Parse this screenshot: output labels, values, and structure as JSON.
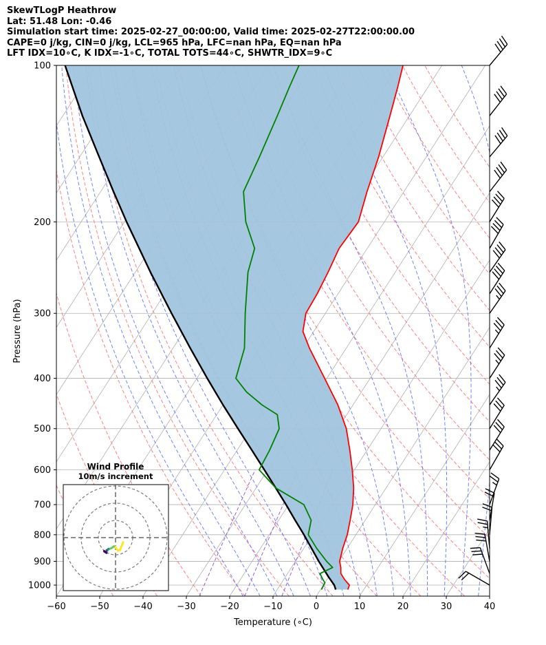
{
  "header": {
    "lines": [
      "SkewTLogP Heathrow",
      "Lat: 51.48   Lon: -0.46",
      "Simulation start time: 2025-02-27_00:00:00, Valid time: 2025-02-27T22:00:00.00",
      "CAPE=0 j/kg, CIN=0 j/kg, LCL=965 hPa, LFC=nan hPa, EQ=nan hPa",
      "LFT IDX=10∘C, K IDX=-1∘C, TOTAL TOTS=44∘C, SHWTR_IDX=9∘C"
    ]
  },
  "chart_data": {
    "type": "line",
    "xlabel": "Temperature (∘C)",
    "ylabel": "Pressure (hPa)",
    "xlim": [
      -60,
      40
    ],
    "ylim": [
      1050,
      100
    ],
    "yscale": "log",
    "xticks": [
      -60,
      -50,
      -40,
      -30,
      -20,
      -10,
      0,
      10,
      20,
      30,
      40
    ],
    "yticks": [
      100,
      200,
      300,
      400,
      500,
      600,
      700,
      800,
      900,
      1000
    ],
    "grid": true,
    "colors": {
      "temperature": "#ff0000",
      "dewpoint": "#008000",
      "parcel": "#000000",
      "cape_fill": "#a1c4de",
      "dry_adiabat": "#ff6b6b",
      "moist_adiabat": "#5b6bff",
      "mixing_ratio": "#9b5bd6",
      "isotherm": "#b0b0b0"
    },
    "temperature": [
      [
        1020,
        6.3
      ],
      [
        1000,
        6.0
      ],
      [
        975,
        4.0
      ],
      [
        950,
        2.3
      ],
      [
        925,
        1.4
      ],
      [
        900,
        0.2
      ],
      [
        850,
        -1.0
      ],
      [
        800,
        -2.0
      ],
      [
        750,
        -3.5
      ],
      [
        700,
        -5.2
      ],
      [
        650,
        -7.5
      ],
      [
        600,
        -10.5
      ],
      [
        550,
        -14.0
      ],
      [
        500,
        -18.0
      ],
      [
        450,
        -23.5
      ],
      [
        400,
        -30.5
      ],
      [
        350,
        -38.5
      ],
      [
        325,
        -42.5
      ],
      [
        300,
        -44.5
      ],
      [
        275,
        -44.8
      ],
      [
        250,
        -45.5
      ],
      [
        225,
        -46.5
      ],
      [
        200,
        -46.0
      ],
      [
        175,
        -48.5
      ],
      [
        150,
        -51.0
      ],
      [
        125,
        -54.5
      ],
      [
        110,
        -57.0
      ],
      [
        100,
        -59.0
      ]
    ],
    "dewpoint": [
      [
        1020,
        0.2
      ],
      [
        990,
        0.0
      ],
      [
        975,
        -1.0
      ],
      [
        950,
        -2.5
      ],
      [
        925,
        -0.5
      ],
      [
        900,
        -2.8
      ],
      [
        850,
        -7.0
      ],
      [
        800,
        -11.0
      ],
      [
        750,
        -12.5
      ],
      [
        700,
        -16.5
      ],
      [
        650,
        -25.5
      ],
      [
        600,
        -32.0
      ],
      [
        550,
        -32.5
      ],
      [
        500,
        -33.5
      ],
      [
        470,
        -36.0
      ],
      [
        450,
        -41.0
      ],
      [
        425,
        -46.5
      ],
      [
        400,
        -51.0
      ],
      [
        350,
        -53.5
      ],
      [
        300,
        -58.5
      ],
      [
        250,
        -64.0
      ],
      [
        225,
        -66.0
      ],
      [
        200,
        -72.0
      ],
      [
        175,
        -77.0
      ],
      [
        150,
        -78.5
      ],
      [
        125,
        -80.5
      ],
      [
        110,
        -82.0
      ],
      [
        100,
        -83.0
      ]
    ],
    "parcel": [
      [
        1020,
        3.5
      ],
      [
        1000,
        2.5
      ],
      [
        965,
        0.0
      ],
      [
        900,
        -4.6
      ],
      [
        850,
        -8.2
      ],
      [
        800,
        -12.0
      ],
      [
        750,
        -16.2
      ],
      [
        700,
        -20.6
      ],
      [
        650,
        -25.5
      ],
      [
        600,
        -30.8
      ],
      [
        550,
        -36.6
      ],
      [
        500,
        -43.0
      ],
      [
        450,
        -50.0
      ],
      [
        400,
        -57.6
      ],
      [
        350,
        -66.0
      ],
      [
        300,
        -75.5
      ],
      [
        250,
        -86.5
      ],
      [
        200,
        -99.5
      ],
      [
        175,
        -107.0
      ],
      [
        150,
        -115.5
      ],
      [
        125,
        -125.5
      ],
      [
        100,
        -137.0
      ]
    ],
    "wind_barbs": [
      [
        100,
        40,
        40
      ],
      [
        125,
        38,
        40
      ],
      [
        150,
        40,
        40
      ],
      [
        175,
        38,
        40
      ],
      [
        200,
        32,
        40
      ],
      [
        225,
        30,
        40
      ],
      [
        250,
        35,
        40
      ],
      [
        275,
        33,
        40
      ],
      [
        300,
        35,
        35
      ],
      [
        350,
        32,
        35
      ],
      [
        400,
        33,
        35
      ],
      [
        450,
        35,
        35
      ],
      [
        500,
        32,
        30
      ],
      [
        550,
        32,
        30
      ],
      [
        600,
        30,
        30
      ],
      [
        700,
        20,
        25
      ],
      [
        750,
        10,
        20
      ],
      [
        800,
        5,
        20
      ],
      [
        850,
        355,
        25
      ],
      [
        900,
        350,
        30
      ],
      [
        950,
        340,
        30
      ],
      [
        1000,
        300,
        20
      ]
    ],
    "hodograph": {
      "title": "Wind Profile",
      "subtitle": "10m/s increment",
      "rings": [
        10,
        20,
        30
      ]
    }
  }
}
